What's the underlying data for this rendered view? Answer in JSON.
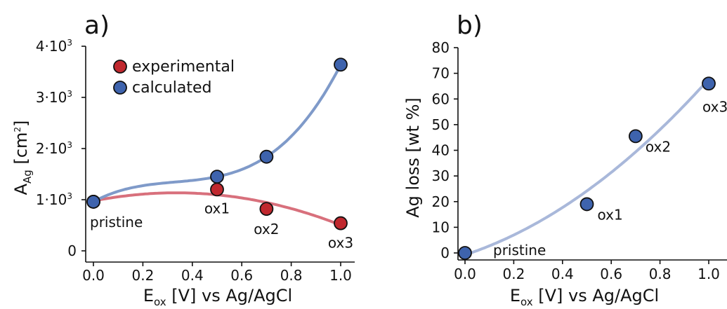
{
  "chart_data": [
    {
      "panel_label": "a)",
      "type": "scatter",
      "xlabel": {
        "main": "E",
        "sub": "ox",
        "rest": " [V] vs Ag/AgCl"
      },
      "ylabel": {
        "main": "A",
        "sub": "Ag",
        "rest": " [cm",
        "sup": "2",
        "end": "]"
      },
      "xlim": [
        0,
        1.0
      ],
      "ylim": [
        0,
        4000
      ],
      "x_ticks": [
        0.0,
        0.2,
        0.4,
        0.6,
        0.8,
        1.0
      ],
      "x_tick_labels": [
        "0.0",
        "0.2",
        "0.4",
        "0.6",
        "0.8",
        "1.0"
      ],
      "y_ticks": [
        0,
        1000,
        2000,
        3000,
        4000
      ],
      "y_tick_labels": [
        {
          "base": "0",
          "exp": ""
        },
        {
          "base": "1·10",
          "exp": "3"
        },
        {
          "base": "2·10",
          "exp": "3"
        },
        {
          "base": "3·10",
          "exp": "3"
        },
        {
          "base": "4·10",
          "exp": "3"
        }
      ],
      "legend": {
        "placement": "top-left",
        "entries": [
          "experimental",
          "calculated"
        ]
      },
      "series": [
        {
          "name": "experimental",
          "color": "#c0282e",
          "fit_color": "#d8707c",
          "x": [
            0.0,
            0.5,
            0.7,
            1.0
          ],
          "y": [
            960,
            1200,
            820,
            540
          ]
        },
        {
          "name": "calculated",
          "color": "#3e63ad",
          "fit_color": "#7f9ac9",
          "x": [
            0.0,
            0.5,
            0.7,
            1.0
          ],
          "y": [
            960,
            1450,
            1840,
            3640
          ]
        }
      ],
      "point_labels": [
        {
          "text": "pristine",
          "x": 0.0,
          "y": 960
        },
        {
          "text": "ox1",
          "x": 0.5,
          "y": 1200
        },
        {
          "text": "ox2",
          "x": 0.7,
          "y": 820
        },
        {
          "text": "ox3",
          "x": 1.0,
          "y": 540
        }
      ],
      "grid": false
    },
    {
      "panel_label": "b)",
      "type": "scatter",
      "xlabel": {
        "main": "E",
        "sub": "ox",
        "rest": " [V] vs Ag/AgCl"
      },
      "ylabel": {
        "text": "Ag loss [wt %]"
      },
      "xlim": [
        0,
        1.0
      ],
      "ylim": [
        0,
        80
      ],
      "x_ticks": [
        0.0,
        0.2,
        0.4,
        0.6,
        0.8,
        1.0
      ],
      "x_tick_labels": [
        "0.0",
        "0.2",
        "0.4",
        "0.6",
        "0.8",
        "1.0"
      ],
      "y_ticks": [
        0,
        10,
        20,
        30,
        40,
        50,
        60,
        70,
        80
      ],
      "y_tick_labels": [
        "0",
        "10",
        "20",
        "30",
        "40",
        "50",
        "60",
        "70",
        "80"
      ],
      "series": [
        {
          "color": "#3e63ad",
          "fit_color": "#a9b8da",
          "x": [
            0.0,
            0.5,
            0.7,
            1.0
          ],
          "y": [
            0,
            19,
            45.5,
            66
          ]
        }
      ],
      "point_labels": [
        {
          "text": "pristine",
          "x": 0.0,
          "y": 0
        },
        {
          "text": "ox1",
          "x": 0.5,
          "y": 19
        },
        {
          "text": "ox2",
          "x": 0.7,
          "y": 45.5
        },
        {
          "text": "ox3",
          "x": 1.0,
          "y": 66
        }
      ],
      "grid": false
    }
  ]
}
